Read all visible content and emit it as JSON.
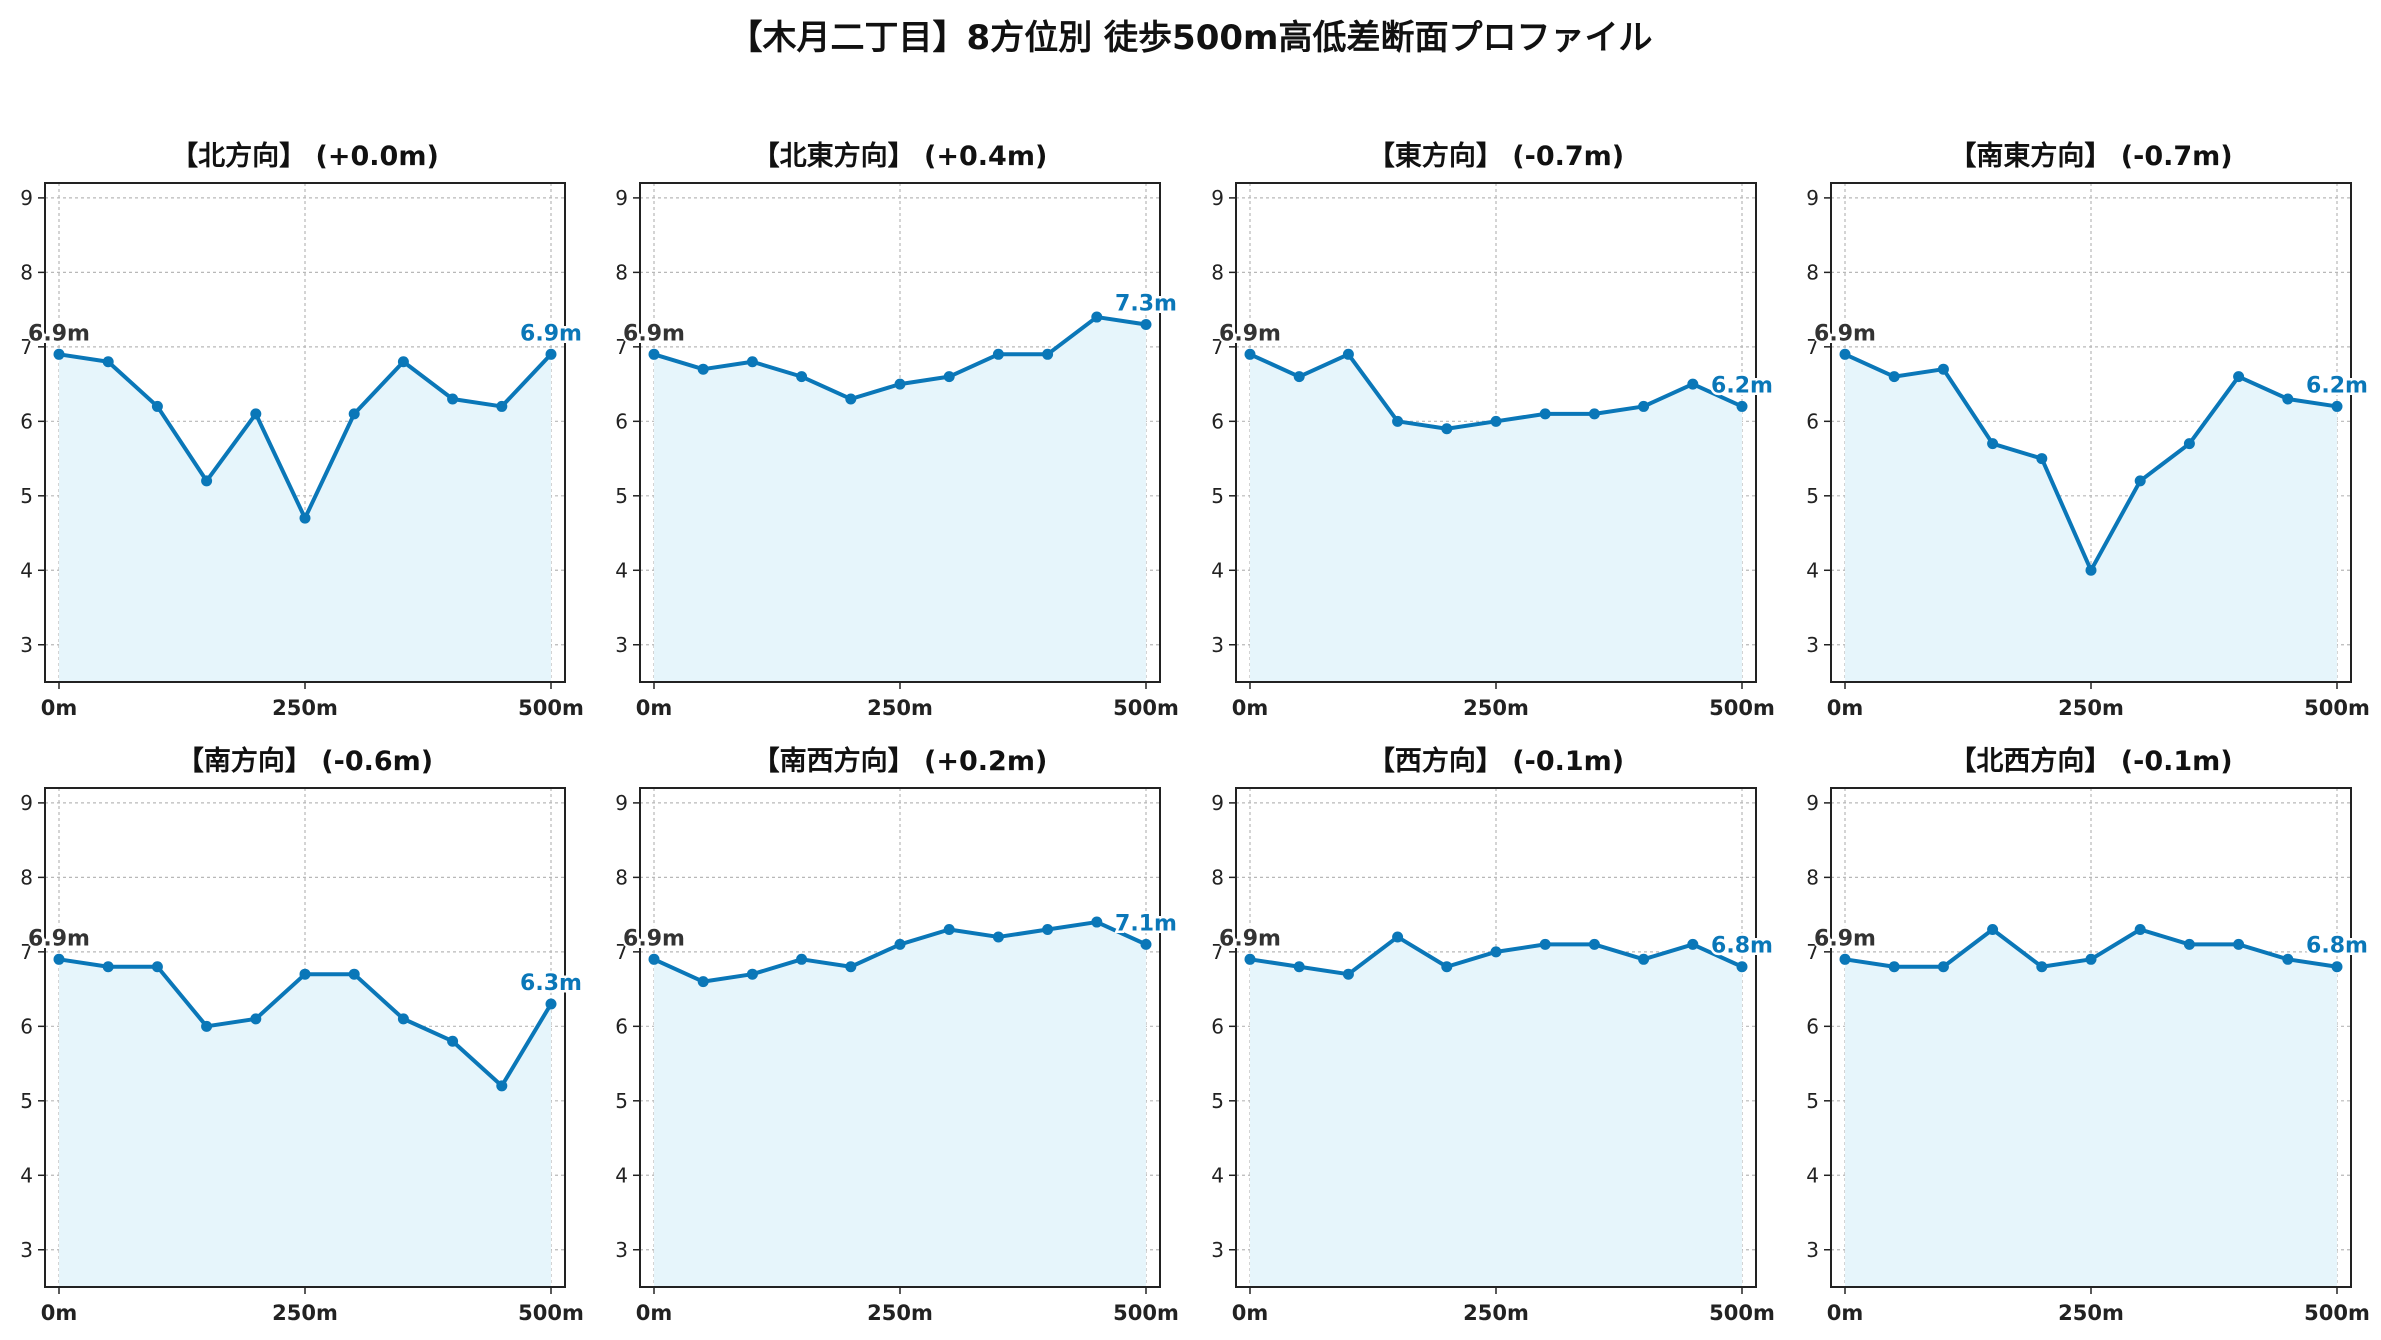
{
  "title": "【木月二丁目】8方位別 徒歩500m高低差断面プロファイル",
  "colors": {
    "line": "#0a77b8",
    "fill": "#e6f5fb",
    "grid": "#b8b8b8",
    "start_label": "#333333"
  },
  "chart_data": [
    {
      "type": "area",
      "title": "【北方向】 (+0.0m)",
      "x": [
        0,
        50,
        100,
        150,
        200,
        250,
        300,
        350,
        400,
        450,
        500
      ],
      "values": [
        6.9,
        6.8,
        6.2,
        5.2,
        6.1,
        4.7,
        6.1,
        6.8,
        6.3,
        6.2,
        6.9
      ],
      "start_label": "6.9m",
      "end_label": "6.9m",
      "xticks": [
        "0m",
        "250m",
        "500m"
      ],
      "yticks": [
        "3",
        "4",
        "5",
        "6",
        "7",
        "8",
        "9"
      ],
      "xlim": [
        0,
        500
      ],
      "ylim": [
        2.5,
        9.2
      ],
      "grid": true
    },
    {
      "type": "area",
      "title": "【北東方向】 (+0.4m)",
      "x": [
        0,
        50,
        100,
        150,
        200,
        250,
        300,
        350,
        400,
        450,
        500
      ],
      "values": [
        6.9,
        6.7,
        6.8,
        6.6,
        6.3,
        6.5,
        6.6,
        6.9,
        6.9,
        7.4,
        7.3
      ],
      "start_label": "6.9m",
      "end_label": "7.3m",
      "xticks": [
        "0m",
        "250m",
        "500m"
      ],
      "yticks": [
        "3",
        "4",
        "5",
        "6",
        "7",
        "8",
        "9"
      ],
      "xlim": [
        0,
        500
      ],
      "ylim": [
        2.5,
        9.2
      ],
      "grid": true
    },
    {
      "type": "area",
      "title": "【東方向】 (-0.7m)",
      "x": [
        0,
        50,
        100,
        150,
        200,
        250,
        300,
        350,
        400,
        450,
        500
      ],
      "values": [
        6.9,
        6.6,
        6.9,
        6.0,
        5.9,
        6.0,
        6.1,
        6.1,
        6.2,
        6.5,
        6.2
      ],
      "start_label": "6.9m",
      "end_label": "6.2m",
      "xticks": [
        "0m",
        "250m",
        "500m"
      ],
      "yticks": [
        "3",
        "4",
        "5",
        "6",
        "7",
        "8",
        "9"
      ],
      "xlim": [
        0,
        500
      ],
      "ylim": [
        2.5,
        9.2
      ],
      "grid": true
    },
    {
      "type": "area",
      "title": "【南東方向】 (-0.7m)",
      "x": [
        0,
        50,
        100,
        150,
        200,
        250,
        300,
        350,
        400,
        450,
        500
      ],
      "values": [
        6.9,
        6.6,
        6.7,
        5.7,
        5.5,
        4.0,
        5.2,
        5.7,
        6.6,
        6.3,
        6.2
      ],
      "start_label": "6.9m",
      "end_label": "6.2m",
      "xticks": [
        "0m",
        "250m",
        "500m"
      ],
      "yticks": [
        "3",
        "4",
        "5",
        "6",
        "7",
        "8",
        "9"
      ],
      "xlim": [
        0,
        500
      ],
      "ylim": [
        2.5,
        9.2
      ],
      "grid": true
    },
    {
      "type": "area",
      "title": "【南方向】 (-0.6m)",
      "x": [
        0,
        50,
        100,
        150,
        200,
        250,
        300,
        350,
        400,
        450,
        500
      ],
      "values": [
        6.9,
        6.8,
        6.8,
        6.0,
        6.1,
        6.7,
        6.7,
        6.1,
        5.8,
        5.2,
        6.3
      ],
      "start_label": "6.9m",
      "end_label": "6.3m",
      "xticks": [
        "0m",
        "250m",
        "500m"
      ],
      "yticks": [
        "3",
        "4",
        "5",
        "6",
        "7",
        "8",
        "9"
      ],
      "xlim": [
        0,
        500
      ],
      "ylim": [
        2.5,
        9.2
      ],
      "grid": true
    },
    {
      "type": "area",
      "title": "【南西方向】 (+0.2m)",
      "x": [
        0,
        50,
        100,
        150,
        200,
        250,
        300,
        350,
        400,
        450,
        500
      ],
      "values": [
        6.9,
        6.6,
        6.7,
        6.9,
        6.8,
        7.1,
        7.3,
        7.2,
        7.3,
        7.4,
        7.1
      ],
      "start_label": "6.9m",
      "end_label": "7.1m",
      "xticks": [
        "0m",
        "250m",
        "500m"
      ],
      "yticks": [
        "3",
        "4",
        "5",
        "6",
        "7",
        "8",
        "9"
      ],
      "xlim": [
        0,
        500
      ],
      "ylim": [
        2.5,
        9.2
      ],
      "grid": true
    },
    {
      "type": "area",
      "title": "【西方向】 (-0.1m)",
      "x": [
        0,
        50,
        100,
        150,
        200,
        250,
        300,
        350,
        400,
        450,
        500
      ],
      "values": [
        6.9,
        6.8,
        6.7,
        7.2,
        6.8,
        7.0,
        7.1,
        7.1,
        6.9,
        7.1,
        6.8
      ],
      "start_label": "6.9m",
      "end_label": "6.8m",
      "xticks": [
        "0m",
        "250m",
        "500m"
      ],
      "yticks": [
        "3",
        "4",
        "5",
        "6",
        "7",
        "8",
        "9"
      ],
      "xlim": [
        0,
        500
      ],
      "ylim": [
        2.5,
        9.2
      ],
      "grid": true
    },
    {
      "type": "area",
      "title": "【北西方向】 (-0.1m)",
      "x": [
        0,
        50,
        100,
        150,
        200,
        250,
        300,
        350,
        400,
        450,
        500
      ],
      "values": [
        6.9,
        6.8,
        6.8,
        7.3,
        6.8,
        6.9,
        7.3,
        7.1,
        7.1,
        6.9,
        6.8
      ],
      "start_label": "6.9m",
      "end_label": "6.8m",
      "xticks": [
        "0m",
        "250m",
        "500m"
      ],
      "yticks": [
        "3",
        "4",
        "5",
        "6",
        "7",
        "8",
        "9"
      ],
      "xlim": [
        0,
        500
      ],
      "ylim": [
        2.5,
        9.2
      ],
      "grid": true
    }
  ]
}
